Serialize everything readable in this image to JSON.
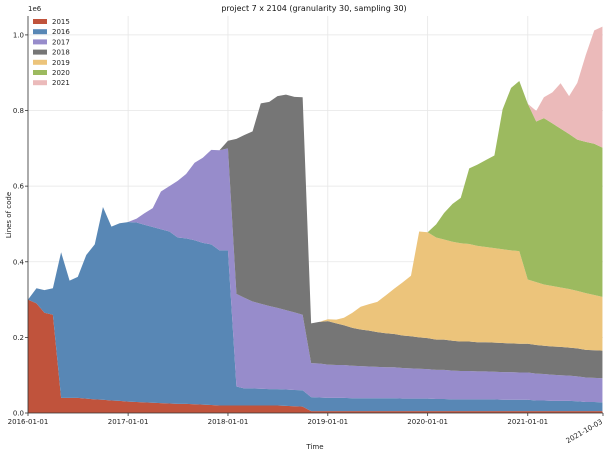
{
  "chart_data": {
    "type": "area",
    "title": "project 7 x 2104 (granularity 30, sampling 30)",
    "xlabel": "Time",
    "ylabel": "Lines of code",
    "y_multiplier": "1e6",
    "ylim": [
      0,
      1.05
    ],
    "xlim": [
      "2016-01-01",
      "2021-10-03"
    ],
    "x_ticks": [
      "2016-01-01",
      "2017-01-01",
      "2018-01-01",
      "2019-01-01",
      "2020-01-01",
      "2021-01-01",
      "2021-10-03"
    ],
    "y_ticks": [
      "0.0",
      "0.2",
      "0.4",
      "0.6",
      "0.8",
      "1.0"
    ],
    "legend_position": "top-left",
    "grid": true,
    "x": [
      "2016-01-01",
      "2016-02-01",
      "2016-03-01",
      "2016-04-01",
      "2016-05-01",
      "2016-06-01",
      "2016-07-01",
      "2016-08-01",
      "2016-09-01",
      "2016-10-01",
      "2016-11-01",
      "2016-12-01",
      "2017-01-01",
      "2017-02-01",
      "2017-03-01",
      "2017-04-01",
      "2017-05-01",
      "2017-06-01",
      "2017-07-01",
      "2017-08-01",
      "2017-09-01",
      "2017-10-01",
      "2017-11-01",
      "2017-12-01",
      "2018-01-01",
      "2018-02-01",
      "2018-03-01",
      "2018-04-01",
      "2018-05-01",
      "2018-06-01",
      "2018-07-01",
      "2018-08-01",
      "2018-09-01",
      "2018-10-01",
      "2018-11-01",
      "2018-12-01",
      "2019-01-01",
      "2019-02-01",
      "2019-03-01",
      "2019-04-01",
      "2019-05-01",
      "2019-06-01",
      "2019-07-01",
      "2019-08-01",
      "2019-09-01",
      "2019-10-01",
      "2019-11-01",
      "2019-12-01",
      "2020-01-01",
      "2020-02-01",
      "2020-03-01",
      "2020-04-01",
      "2020-05-01",
      "2020-06-01",
      "2020-07-01",
      "2020-08-01",
      "2020-09-01",
      "2020-10-01",
      "2020-11-01",
      "2020-12-01",
      "2021-01-01",
      "2021-02-01",
      "2021-03-01",
      "2021-04-01",
      "2021-05-01",
      "2021-06-01",
      "2021-07-01",
      "2021-08-01",
      "2021-09-01",
      "2021-10-01"
    ],
    "series": [
      {
        "name": "2015",
        "color": "#c0533c",
        "values": [
          0.3,
          0.29,
          0.265,
          0.26,
          0.04,
          0.04,
          0.04,
          0.038,
          0.036,
          0.035,
          0.033,
          0.032,
          0.03,
          0.029,
          0.028,
          0.027,
          0.026,
          0.025,
          0.024,
          0.024,
          0.023,
          0.022,
          0.021,
          0.02,
          0.02,
          0.02,
          0.02,
          0.02,
          0.02,
          0.02,
          0.02,
          0.019,
          0.018,
          0.017,
          0.005,
          0.005,
          0.005,
          0.005,
          0.005,
          0.005,
          0.005,
          0.005,
          0.005,
          0.005,
          0.005,
          0.005,
          0.005,
          0.005,
          0.005,
          0.005,
          0.005,
          0.005,
          0.005,
          0.005,
          0.005,
          0.005,
          0.005,
          0.005,
          0.005,
          0.005,
          0.005,
          0.005,
          0.005,
          0.005,
          0.005,
          0.005,
          0.005,
          0.005,
          0.005,
          0.005
        ]
      },
      {
        "name": "2016",
        "color": "#5887b5",
        "values": [
          0.0,
          0.04,
          0.06,
          0.07,
          0.385,
          0.31,
          0.32,
          0.38,
          0.41,
          0.51,
          0.46,
          0.47,
          0.475,
          0.475,
          0.47,
          0.465,
          0.46,
          0.455,
          0.44,
          0.438,
          0.434,
          0.428,
          0.425,
          0.41,
          0.41,
          0.05,
          0.045,
          0.045,
          0.044,
          0.043,
          0.043,
          0.043,
          0.043,
          0.043,
          0.037,
          0.036,
          0.035,
          0.035,
          0.035,
          0.034,
          0.034,
          0.034,
          0.034,
          0.034,
          0.034,
          0.033,
          0.033,
          0.033,
          0.033,
          0.032,
          0.032,
          0.031,
          0.031,
          0.031,
          0.031,
          0.031,
          0.031,
          0.03,
          0.03,
          0.03,
          0.03,
          0.028,
          0.028,
          0.027,
          0.027,
          0.027,
          0.026,
          0.024,
          0.024,
          0.023
        ]
      },
      {
        "name": "2017",
        "color": "#978ccb",
        "values": [
          0,
          0,
          0,
          0,
          0,
          0,
          0,
          0,
          0,
          0,
          0,
          0,
          0,
          0.01,
          0.03,
          0.05,
          0.1,
          0.12,
          0.15,
          0.17,
          0.205,
          0.225,
          0.25,
          0.265,
          0.27,
          0.245,
          0.24,
          0.23,
          0.225,
          0.22,
          0.215,
          0.21,
          0.205,
          0.2,
          0.09,
          0.09,
          0.088,
          0.087,
          0.087,
          0.086,
          0.085,
          0.084,
          0.083,
          0.082,
          0.082,
          0.081,
          0.08,
          0.079,
          0.078,
          0.077,
          0.077,
          0.076,
          0.075,
          0.075,
          0.074,
          0.074,
          0.073,
          0.073,
          0.073,
          0.072,
          0.072,
          0.071,
          0.07,
          0.069,
          0.068,
          0.067,
          0.066,
          0.065,
          0.064,
          0.064
        ]
      },
      {
        "name": "2018",
        "color": "#767676",
        "values": [
          0,
          0,
          0,
          0,
          0,
          0,
          0,
          0,
          0,
          0,
          0,
          0,
          0,
          0,
          0,
          0,
          0,
          0,
          0,
          0,
          0,
          0,
          0,
          0,
          0.02,
          0.41,
          0.43,
          0.45,
          0.53,
          0.54,
          0.56,
          0.57,
          0.57,
          0.575,
          0.105,
          0.11,
          0.115,
          0.11,
          0.105,
          0.1,
          0.097,
          0.095,
          0.092,
          0.09,
          0.088,
          0.086,
          0.085,
          0.083,
          0.082,
          0.08,
          0.08,
          0.079,
          0.078,
          0.078,
          0.077,
          0.077,
          0.077,
          0.077,
          0.076,
          0.076,
          0.076,
          0.076,
          0.075,
          0.075,
          0.075,
          0.074,
          0.074,
          0.073,
          0.073,
          0.073
        ]
      },
      {
        "name": "2019",
        "color": "#ecc47b",
        "values": [
          0,
          0,
          0,
          0,
          0,
          0,
          0,
          0,
          0,
          0,
          0,
          0,
          0,
          0,
          0,
          0,
          0,
          0,
          0,
          0,
          0,
          0,
          0,
          0,
          0,
          0,
          0,
          0,
          0,
          0,
          0,
          0,
          0,
          0,
          0,
          0,
          0.005,
          0.01,
          0.02,
          0.04,
          0.06,
          0.07,
          0.08,
          0.1,
          0.12,
          0.14,
          0.16,
          0.28,
          0.28,
          0.27,
          0.265,
          0.262,
          0.26,
          0.258,
          0.255,
          0.252,
          0.25,
          0.248,
          0.246,
          0.245,
          0.17,
          0.166,
          0.162,
          0.16,
          0.157,
          0.155,
          0.152,
          0.15,
          0.146,
          0.142
        ]
      },
      {
        "name": "2020",
        "color": "#9cba5f",
        "values": [
          0,
          0,
          0,
          0,
          0,
          0,
          0,
          0,
          0,
          0,
          0,
          0,
          0,
          0,
          0,
          0,
          0,
          0,
          0,
          0,
          0,
          0,
          0,
          0,
          0,
          0,
          0,
          0,
          0,
          0,
          0,
          0,
          0,
          0,
          0,
          0,
          0,
          0,
          0,
          0,
          0,
          0,
          0,
          0,
          0,
          0,
          0,
          0,
          0,
          0.035,
          0.07,
          0.1,
          0.12,
          0.2,
          0.215,
          0.23,
          0.245,
          0.37,
          0.43,
          0.45,
          0.465,
          0.425,
          0.44,
          0.43,
          0.42,
          0.41,
          0.4,
          0.4,
          0.4,
          0.395
        ]
      },
      {
        "name": "2021",
        "color": "#ebbaba",
        "values": [
          0,
          0,
          0,
          0,
          0,
          0,
          0,
          0,
          0,
          0,
          0,
          0,
          0,
          0,
          0,
          0,
          0,
          0,
          0,
          0,
          0,
          0,
          0,
          0,
          0,
          0,
          0,
          0,
          0,
          0,
          0,
          0,
          0,
          0,
          0,
          0,
          0,
          0,
          0,
          0,
          0,
          0,
          0,
          0,
          0,
          0,
          0,
          0,
          0,
          0,
          0,
          0,
          0,
          0,
          0,
          0,
          0,
          0,
          0,
          0,
          0,
          0.028,
          0.055,
          0.082,
          0.12,
          0.1,
          0.15,
          0.23,
          0.3,
          0.32
        ]
      }
    ]
  }
}
